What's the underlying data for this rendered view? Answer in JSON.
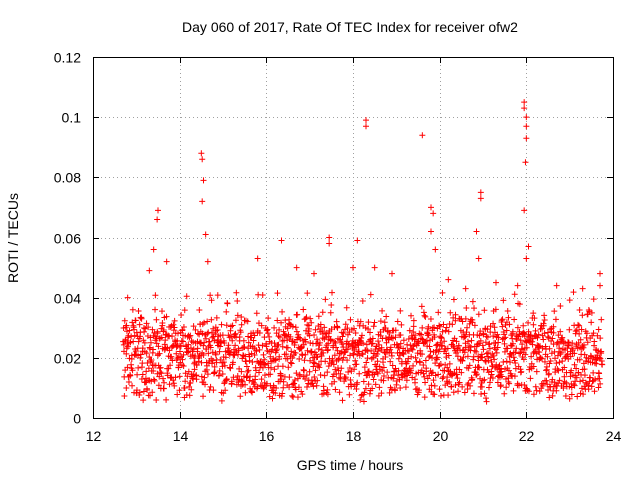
{
  "chart_data": {
    "type": "scatter",
    "title": "Day 060 of 2017, Rate Of TEC Index for receiver ofw2",
    "xlabel": "GPS time / hours",
    "ylabel": "ROTI / TECUs",
    "xlim": [
      12,
      24
    ],
    "ylim": [
      0,
      0.12
    ],
    "x_ticks": [
      "12",
      "14",
      "16",
      "18",
      "20",
      "22",
      "24"
    ],
    "y_ticks": [
      "0",
      "0.02",
      "0.04",
      "0.06",
      "0.08",
      "0.1",
      "0.12"
    ],
    "grid": true,
    "marker": "+",
    "series": [
      {
        "name": "ROTI",
        "color": "#ff0000",
        "x_range": [
          12.7,
          23.75
        ],
        "baseline_band": [
          0.008,
          0.03
        ],
        "highlighted_points": [
          {
            "x": 13.5,
            "y": 0.069
          },
          {
            "x": 13.48,
            "y": 0.066
          },
          {
            "x": 13.4,
            "y": 0.056
          },
          {
            "x": 14.5,
            "y": 0.088
          },
          {
            "x": 14.52,
            "y": 0.086
          },
          {
            "x": 14.55,
            "y": 0.079
          },
          {
            "x": 14.52,
            "y": 0.072
          },
          {
            "x": 14.6,
            "y": 0.061
          },
          {
            "x": 14.65,
            "y": 0.052
          },
          {
            "x": 16.35,
            "y": 0.059
          },
          {
            "x": 17.45,
            "y": 0.06
          },
          {
            "x": 17.45,
            "y": 0.058
          },
          {
            "x": 18.0,
            "y": 0.05
          },
          {
            "x": 18.1,
            "y": 0.059
          },
          {
            "x": 18.3,
            "y": 0.099
          },
          {
            "x": 18.3,
            "y": 0.097
          },
          {
            "x": 18.5,
            "y": 0.05
          },
          {
            "x": 19.6,
            "y": 0.094
          },
          {
            "x": 19.8,
            "y": 0.07
          },
          {
            "x": 19.85,
            "y": 0.068
          },
          {
            "x": 19.8,
            "y": 0.062
          },
          {
            "x": 19.9,
            "y": 0.056
          },
          {
            "x": 20.85,
            "y": 0.062
          },
          {
            "x": 20.9,
            "y": 0.053
          },
          {
            "x": 20.95,
            "y": 0.075
          },
          {
            "x": 20.95,
            "y": 0.073
          },
          {
            "x": 21.95,
            "y": 0.105
          },
          {
            "x": 21.95,
            "y": 0.103
          },
          {
            "x": 22.0,
            "y": 0.1
          },
          {
            "x": 22.0,
            "y": 0.097
          },
          {
            "x": 22.0,
            "y": 0.093
          },
          {
            "x": 21.98,
            "y": 0.085
          },
          {
            "x": 21.95,
            "y": 0.069
          },
          {
            "x": 22.05,
            "y": 0.057
          },
          {
            "x": 22.0,
            "y": 0.053
          },
          {
            "x": 23.7,
            "y": 0.048
          },
          {
            "x": 23.7,
            "y": 0.044
          },
          {
            "x": 12.8,
            "y": 0.04
          },
          {
            "x": 13.3,
            "y": 0.049
          },
          {
            "x": 13.7,
            "y": 0.052
          },
          {
            "x": 15.8,
            "y": 0.053
          },
          {
            "x": 16.7,
            "y": 0.05
          },
          {
            "x": 17.1,
            "y": 0.048
          },
          {
            "x": 18.9,
            "y": 0.048
          },
          {
            "x": 20.2,
            "y": 0.046
          },
          {
            "x": 20.6,
            "y": 0.043
          },
          {
            "x": 21.3,
            "y": 0.045
          },
          {
            "x": 21.8,
            "y": 0.044
          },
          {
            "x": 22.7,
            "y": 0.044
          },
          {
            "x": 23.3,
            "y": 0.043
          }
        ]
      }
    ]
  }
}
